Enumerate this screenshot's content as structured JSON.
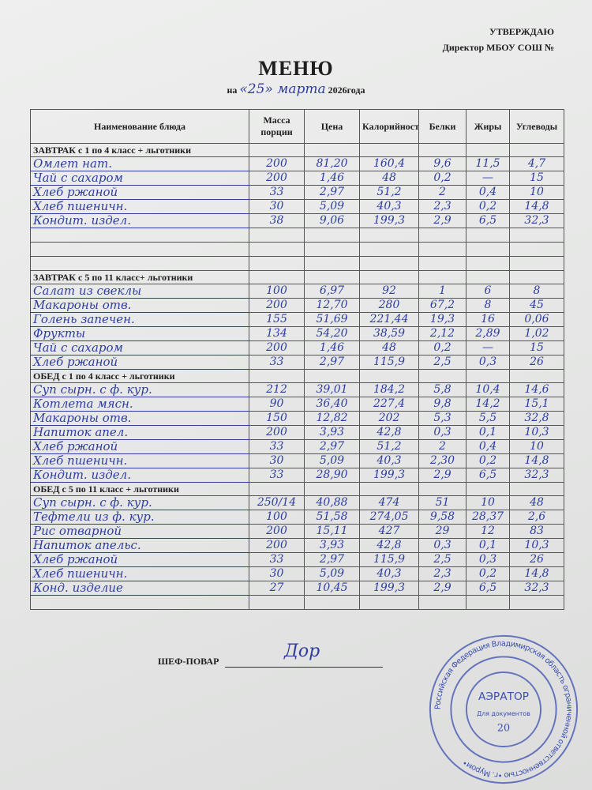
{
  "header": {
    "approve": "УТВЕРЖДАЮ",
    "director": "Директор МБОУ СОШ №",
    "title": "МЕНЮ",
    "date_prefix": "на",
    "date_handwritten": "«25» марта",
    "date_suffix": "2026года"
  },
  "table": {
    "columns": [
      "Наименование блюда",
      "Масса порции",
      "Цена",
      "Калорийность",
      "Белки",
      "Жиры",
      "Углеводы"
    ],
    "sections": [
      {
        "title": "ЗАВТРАК с 1 по 4 класс + льготники",
        "rows": [
          [
            "Омлет нат.",
            "200",
            "81,20",
            "160,4",
            "9,6",
            "11,5",
            "4,7"
          ],
          [
            "Чай с сахаром",
            "200",
            "1,46",
            "48",
            "0,2",
            "—",
            "15"
          ],
          [
            "Хлеб ржаной",
            "33",
            "2,97",
            "51,2",
            "2",
            "0,4",
            "10"
          ],
          [
            "Хлеб пшеничн.",
            "30",
            "5,09",
            "40,3",
            "2,3",
            "0,2",
            "14,8"
          ],
          [
            "Кондит. издел.",
            "38",
            "9,06",
            "199,3",
            "2,9",
            "6,5",
            "32,3"
          ]
        ]
      },
      {
        "title": "ЗАВТРАК с 5 по 11 класс+ льготники",
        "rows": [
          [
            "Салат из свеклы",
            "100",
            "6,97",
            "92",
            "1",
            "6",
            "8"
          ],
          [
            "Макароны отв.",
            "200",
            "12,70",
            "280",
            "67,2",
            "8",
            "45"
          ],
          [
            "Голень запечен.",
            "155",
            "51,69",
            "221,44",
            "19,3",
            "16",
            "0,06"
          ],
          [
            "Фрукты",
            "134",
            "54,20",
            "38,59",
            "2,12",
            "2,89",
            "1,02"
          ],
          [
            "Чай с сахаром",
            "200",
            "1,46",
            "48",
            "0,2",
            "—",
            "15"
          ],
          [
            "Хлеб ржаной",
            "33",
            "2,97",
            "115,9",
            "2,5",
            "0,3",
            "26"
          ]
        ]
      },
      {
        "title": "ОБЕД с 1 по 4 класс + льготники",
        "rows": [
          [
            "Суп сырн. с ф. кур.",
            "212",
            "39,01",
            "184,2",
            "5,8",
            "10,4",
            "14,6"
          ],
          [
            "Котлета мясн.",
            "90",
            "36,40",
            "227,4",
            "9,8",
            "14,2",
            "15,1"
          ],
          [
            "Макароны отв.",
            "150",
            "12,82",
            "202",
            "5,3",
            "5,5",
            "32,8"
          ],
          [
            "Напиток апел.",
            "200",
            "3,93",
            "42,8",
            "0,3",
            "0,1",
            "10,3"
          ],
          [
            "Хлеб ржаной",
            "33",
            "2,97",
            "51,2",
            "2",
            "0,4",
            "10"
          ],
          [
            "Хлеб пшеничн.",
            "30",
            "5,09",
            "40,3",
            "2,30",
            "0,2",
            "14,8"
          ],
          [
            "Кондит. издел.",
            "33",
            "28,90",
            "199,3",
            "2,9",
            "6,5",
            "32,3"
          ]
        ]
      },
      {
        "title": "ОБЕД с 5 по 11 класс + льготники",
        "rows": [
          [
            "Суп сырн. с ф. кур.",
            "250/14",
            "40,88",
            "474",
            "51",
            "10",
            "48"
          ],
          [
            "Тефтели из ф. кур.",
            "100",
            "51,58",
            "274,05",
            "9,58",
            "28,37",
            "2,6"
          ],
          [
            "Рис отварной",
            "200",
            "15,11",
            "427",
            "29",
            "12",
            "83"
          ],
          [
            "Напиток апельс.",
            "200",
            "3,93",
            "42,8",
            "0,3",
            "0,1",
            "10,3"
          ],
          [
            "Хлеб ржаной",
            "33",
            "2,97",
            "115,9",
            "2,5",
            "0,3",
            "26"
          ],
          [
            "Хлеб пшеничн.",
            "30",
            "5,09",
            "40,3",
            "2,3",
            "0,2",
            "14,8"
          ],
          [
            "Конд. изделие",
            "27",
            "10,45",
            "199,3",
            "2,9",
            "6,5",
            "32,3"
          ]
        ]
      }
    ]
  },
  "footer": {
    "chef_label": "ШЕФ-ПОВАР",
    "signature": "Дор"
  },
  "stamp": {
    "ring_text": "Российская Федерация Владимирская область ограниченной ответственностью •г. Муром•",
    "name": "АЭРАТОР",
    "purpose": "Для документов",
    "number": "20",
    "color": "#3b4fb0"
  },
  "colors": {
    "ink": "#2e3d9e",
    "paper": "#e6e7e6"
  }
}
